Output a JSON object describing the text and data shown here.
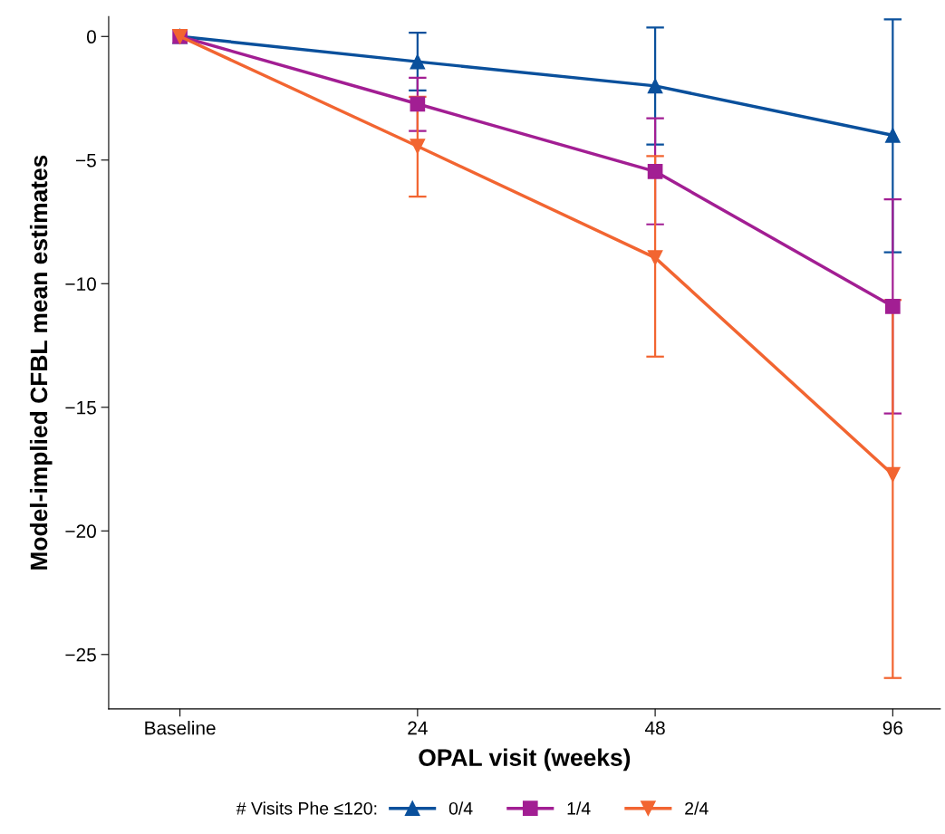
{
  "chart_data": {
    "type": "line",
    "xlabel": "OPAL visit (weeks)",
    "ylabel": "Model-implied CFBL mean estimates",
    "categories": [
      "Baseline",
      "24",
      "48",
      "96"
    ],
    "ylim": [
      -27.2,
      0.8
    ],
    "yticks": [
      0,
      -5,
      -10,
      -15,
      -20,
      -25
    ],
    "grid": false,
    "legend": "bottom",
    "legend_title": "# Visits Phe ≤120:",
    "line_style": "solid",
    "series": [
      {
        "name": "0/4",
        "color": "#0a509c",
        "marker": "triangle",
        "values": [
          0,
          -1.02,
          -2.0,
          -4.0
        ],
        "errors": [
          null,
          [
            -2.18,
            0.15
          ],
          [
            -4.37,
            0.36
          ],
          [
            -8.73,
            0.69
          ]
        ]
      },
      {
        "name": "1/4",
        "color": "#a21e93",
        "marker": "square",
        "values": [
          0,
          -2.73,
          -5.46,
          -10.92
        ],
        "errors": [
          null,
          [
            -3.82,
            -1.67
          ],
          [
            -7.6,
            -3.31
          ],
          [
            -15.25,
            -6.59
          ]
        ]
      },
      {
        "name": "2/4",
        "color": "#f26531",
        "marker": "triangle_down",
        "values": [
          0,
          -4.44,
          -8.95,
          -17.72
        ],
        "errors": [
          null,
          [
            -6.48,
            -2.44
          ],
          [
            -12.95,
            -4.84
          ],
          [
            -25.95,
            -10.66
          ]
        ]
      }
    ]
  }
}
